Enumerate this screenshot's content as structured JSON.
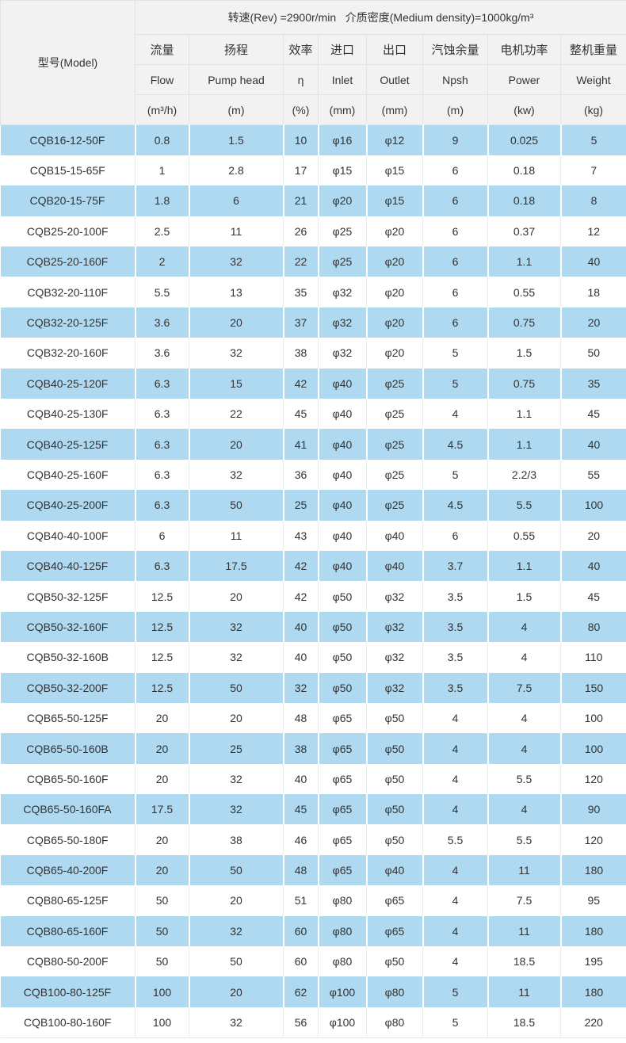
{
  "table": {
    "top_header": "转速(Rev) =2900r/min   介质密度(Medium density)=1000kg/m³",
    "model_header": "型号(Model)",
    "columns": [
      {
        "cn": "流量",
        "en": "Flow",
        "unit": "(m³/h)"
      },
      {
        "cn": "扬程",
        "en": "Pump head",
        "unit": "(m)"
      },
      {
        "cn": "效率",
        "en": "η",
        "unit": "(%)"
      },
      {
        "cn": "进口",
        "en": "Inlet",
        "unit": "(mm)"
      },
      {
        "cn": "出口",
        "en": "Outlet",
        "unit": "(mm)"
      },
      {
        "cn": "汽蚀余量",
        "en": "Npsh",
        "unit": "(m)"
      },
      {
        "cn": "电机功率",
        "en": "Power",
        "unit": "(kw)"
      },
      {
        "cn": "整机重量",
        "en": "Weight",
        "unit": "(kg)"
      }
    ],
    "rows": [
      [
        "CQB16-12-50F",
        "0.8",
        "1.5",
        "10",
        "φ16",
        "φ12",
        "9",
        "0.025",
        "5"
      ],
      [
        "CQB15-15-65F",
        "1",
        "2.8",
        "17",
        "φ15",
        "φ15",
        "6",
        "0.18",
        "7"
      ],
      [
        "CQB20-15-75F",
        "1.8",
        "6",
        "21",
        "φ20",
        "φ15",
        "6",
        "0.18",
        "8"
      ],
      [
        "CQB25-20-100F",
        "2.5",
        "11",
        "26",
        "φ25",
        "φ20",
        "6",
        "0.37",
        "12"
      ],
      [
        "CQB25-20-160F",
        "2",
        "32",
        "22",
        "φ25",
        "φ20",
        "6",
        "1.1",
        "40"
      ],
      [
        "CQB32-20-110F",
        "5.5",
        "13",
        "35",
        "φ32",
        "φ20",
        "6",
        "0.55",
        "18"
      ],
      [
        "CQB32-20-125F",
        "3.6",
        "20",
        "37",
        "φ32",
        "φ20",
        "6",
        "0.75",
        "20"
      ],
      [
        "CQB32-20-160F",
        "3.6",
        "32",
        "38",
        "φ32",
        "φ20",
        "5",
        "1.5",
        "50"
      ],
      [
        "CQB40-25-120F",
        "6.3",
        "15",
        "42",
        "φ40",
        "φ25",
        "5",
        "0.75",
        "35"
      ],
      [
        "CQB40-25-130F",
        "6.3",
        "22",
        "45",
        "φ40",
        "φ25",
        "4",
        "1.1",
        "45"
      ],
      [
        "CQB40-25-125F",
        "6.3",
        "20",
        "41",
        "φ40",
        "φ25",
        "4.5",
        "1.1",
        "40"
      ],
      [
        "CQB40-25-160F",
        "6.3",
        "32",
        "36",
        "φ40",
        "φ25",
        "5",
        "2.2/3",
        "55"
      ],
      [
        "CQB40-25-200F",
        "6.3",
        "50",
        "25",
        "φ40",
        "φ25",
        "4.5",
        "5.5",
        "100"
      ],
      [
        "CQB40-40-100F",
        "6",
        "11",
        "43",
        "φ40",
        "φ40",
        "6",
        "0.55",
        "20"
      ],
      [
        "CQB40-40-125F",
        "6.3",
        "17.5",
        "42",
        "φ40",
        "φ40",
        "3.7",
        "1.1",
        "40"
      ],
      [
        "CQB50-32-125F",
        "12.5",
        "20",
        "42",
        "φ50",
        "φ32",
        "3.5",
        "1.5",
        "45"
      ],
      [
        "CQB50-32-160F",
        "12.5",
        "32",
        "40",
        "φ50",
        "φ32",
        "3.5",
        "4",
        "80"
      ],
      [
        "CQB50-32-160B",
        "12.5",
        "32",
        "40",
        "φ50",
        "φ32",
        "3.5",
        "4",
        "110"
      ],
      [
        "CQB50-32-200F",
        "12.5",
        "50",
        "32",
        "φ50",
        "φ32",
        "3.5",
        "7.5",
        "150"
      ],
      [
        "CQB65-50-125F",
        "20",
        "20",
        "48",
        "φ65",
        "φ50",
        "4",
        "4",
        "100"
      ],
      [
        "CQB65-50-160B",
        "20",
        "25",
        "38",
        "φ65",
        "φ50",
        "4",
        "4",
        "100"
      ],
      [
        "CQB65-50-160F",
        "20",
        "32",
        "40",
        "φ65",
        "φ50",
        "4",
        "5.5",
        "120"
      ],
      [
        "CQB65-50-160FA",
        "17.5",
        "32",
        "45",
        "φ65",
        "φ50",
        "4",
        "4",
        "90"
      ],
      [
        "CQB65-50-180F",
        "20",
        "38",
        "46",
        "φ65",
        "φ50",
        "5.5",
        "5.5",
        "120"
      ],
      [
        "CQB65-40-200F",
        "20",
        "50",
        "48",
        "φ65",
        "φ40",
        "4",
        "11",
        "180"
      ],
      [
        "CQB80-65-125F",
        "50",
        "20",
        "51",
        "φ80",
        "φ65",
        "4",
        "7.5",
        "95"
      ],
      [
        "CQB80-65-160F",
        "50",
        "32",
        "60",
        "φ80",
        "φ65",
        "4",
        "11",
        "180"
      ],
      [
        "CQB80-50-200F",
        "50",
        "50",
        "60",
        "φ80",
        "φ50",
        "4",
        "18.5",
        "195"
      ],
      [
        "CQB100-80-125F",
        "100",
        "20",
        "62",
        "φ100",
        "φ80",
        "5",
        "11",
        "180"
      ],
      [
        "CQB100-80-160F",
        "100",
        "32",
        "56",
        "φ100",
        "φ80",
        "5",
        "18.5",
        "220"
      ]
    ]
  },
  "colors": {
    "row_alt_blue": "#aed9f0",
    "header_bg": "#f2f2f2",
    "header_border": "#e3e3e3",
    "text": "#333333"
  }
}
